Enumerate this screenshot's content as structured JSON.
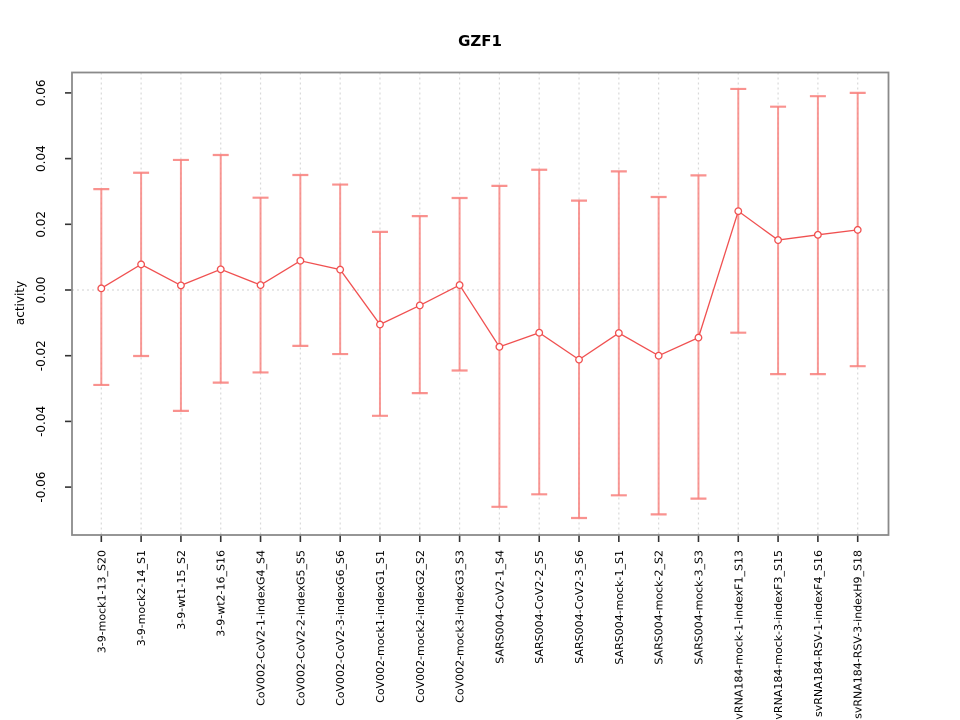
{
  "chart_data": {
    "type": "line",
    "title": "GZF1",
    "xlabel": "",
    "ylabel": "activity",
    "legend": "none",
    "grid": {
      "vertical_dotted_per_category": true,
      "horizontal_zero_line_dotted": true
    },
    "y_tick_labels": [
      "0.06",
      "0.04",
      "0.02",
      "0.00",
      "-0.02",
      "-0.04",
      "-0.06"
    ],
    "ylim": [
      -0.0746,
      0.0662
    ],
    "colors": {
      "series_line": "#f05050",
      "marker_stroke": "#f05050",
      "error_bar": "#f8807c",
      "grid_line": "#d9d9d9",
      "box_border": "#8a8a8a",
      "tick_mark": "#333333",
      "text": "#000000",
      "background": "#ffffff"
    },
    "marker": "open-circle",
    "error_bars": "vertical with end caps",
    "points": [
      {
        "label": "3-9-mock1-13_S20",
        "value": 0.0005,
        "lower": -0.0289,
        "upper": 0.0307
      },
      {
        "label": "3-9-mock2-14_S1",
        "value": 0.0078,
        "lower": -0.0201,
        "upper": 0.0357
      },
      {
        "label": "3-9-wt1-15_S2",
        "value": 0.0014,
        "lower": -0.0368,
        "upper": 0.0396
      },
      {
        "label": "3-9-wt2-16_S16",
        "value": 0.0063,
        "lower": -0.0282,
        "upper": 0.0411
      },
      {
        "label": "CoV002-CoV2-1-indexG4_S4",
        "value": 0.0015,
        "lower": -0.0251,
        "upper": 0.0281
      },
      {
        "label": "CoV002-CoV2-2-indexG5_S5",
        "value": 0.0089,
        "lower": -0.017,
        "upper": 0.035
      },
      {
        "label": "CoV002-CoV2-3-indexG6_S6",
        "value": 0.0062,
        "lower": -0.0195,
        "upper": 0.0321
      },
      {
        "label": "CoV002-mock1-indexG1_S1",
        "value": -0.0105,
        "lower": -0.0383,
        "upper": 0.0177
      },
      {
        "label": "CoV002-mock2-indexG2_S2",
        "value": -0.0047,
        "lower": -0.0314,
        "upper": 0.0225
      },
      {
        "label": "CoV002-mock3-indexG3_S3",
        "value": 0.0015,
        "lower": -0.0245,
        "upper": 0.028
      },
      {
        "label": "SARS004-CoV2-1_S4",
        "value": -0.0173,
        "lower": -0.066,
        "upper": 0.0317
      },
      {
        "label": "SARS004-CoV2-2_S5",
        "value": -0.013,
        "lower": -0.0622,
        "upper": 0.0366
      },
      {
        "label": "SARS004-CoV2-3_S6",
        "value": -0.0212,
        "lower": -0.0694,
        "upper": 0.0272
      },
      {
        "label": "SARS004-mock-1_S1",
        "value": -0.0131,
        "lower": -0.0625,
        "upper": 0.0361
      },
      {
        "label": "SARS004-mock-2_S2",
        "value": -0.02,
        "lower": -0.0683,
        "upper": 0.0283
      },
      {
        "label": "SARS004-mock-3_S3",
        "value": -0.0145,
        "lower": -0.0635,
        "upper": 0.0349
      },
      {
        "label": "svRNA184-mock-1-indexF1_S13",
        "value": 0.024,
        "lower": -0.013,
        "upper": 0.0612
      },
      {
        "label": "svRNA184-mock-3-indexF3_S15",
        "value": 0.0152,
        "lower": -0.0256,
        "upper": 0.0558
      },
      {
        "label": "svRNA184-RSV-1-indexF4_S16",
        "value": 0.0168,
        "lower": -0.0256,
        "upper": 0.059
      },
      {
        "label": "svRNA184-RSV-3-indexH9_S18",
        "value": 0.0183,
        "lower": -0.0232,
        "upper": 0.06
      }
    ]
  }
}
